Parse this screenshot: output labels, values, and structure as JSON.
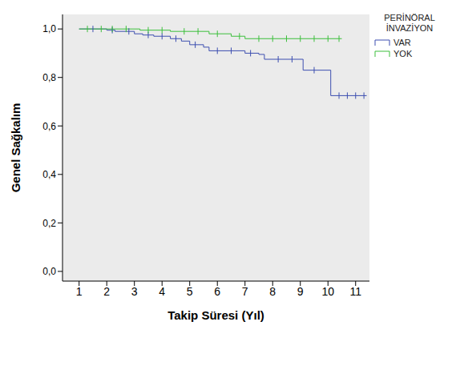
{
  "chart_data": {
    "type": "line",
    "x_label": "Takip Süresi (Yıl)",
    "y_label": "Genel Sağkalım",
    "legend_title": "PERİNÖRAL İNVAZİYON",
    "xlim": [
      0.4,
      11.5
    ],
    "xticks": [
      1,
      2,
      3,
      4,
      5,
      6,
      7,
      8,
      9,
      10,
      11
    ],
    "ylim": [
      -0.04,
      1.06
    ],
    "yticks": [
      {
        "value": 0,
        "label": "0,0"
      },
      {
        "value": 0.2,
        "label": "0,2"
      },
      {
        "value": 0.4,
        "label": "0,4"
      },
      {
        "value": 0.6,
        "label": "0,6"
      },
      {
        "value": 0.8,
        "label": "0,8"
      },
      {
        "value": 1,
        "label": "1,0"
      }
    ],
    "grid": false,
    "legend": "upper right",
    "series": [
      {
        "name": "VAR",
        "color": "#3d4fb0",
        "line_style": "step",
        "x": [
          1,
          2.0,
          2.3,
          3.0,
          3.3,
          3.7,
          4.3,
          4.7,
          5.0,
          5.5,
          5.7,
          7.0,
          7.5,
          7.7,
          9.1,
          10.1,
          11.4
        ],
        "values": [
          1,
          0.995,
          0.99,
          0.98,
          0.975,
          0.97,
          0.96,
          0.95,
          0.935,
          0.925,
          0.91,
          0.9,
          0.895,
          0.875,
          0.83,
          0.725,
          0.725
        ],
        "censored": {
          "x": [
            1.5,
            2.2,
            2.8,
            3.5,
            4.0,
            4.5,
            5.2,
            6.0,
            6.5,
            7.2,
            8.2,
            8.7,
            9.5,
            10.4,
            10.7,
            11.0,
            11.3
          ],
          "values": [
            1,
            0.995,
            0.99,
            0.975,
            0.97,
            0.96,
            0.935,
            0.91,
            0.91,
            0.9,
            0.875,
            0.875,
            0.83,
            0.725,
            0.725,
            0.725,
            0.725
          ]
        }
      },
      {
        "name": "YOK",
        "color": "#3cbf3c",
        "line_style": "step",
        "x": [
          1,
          3.2,
          4.3,
          5.7,
          6.5,
          7.0,
          10.5
        ],
        "values": [
          1,
          0.995,
          0.99,
          0.98,
          0.97,
          0.96,
          0.96
        ],
        "censored": {
          "x": [
            1.3,
            1.8,
            2.2,
            2.7,
            3.5,
            4.0,
            4.8,
            5.3,
            6.0,
            6.8,
            7.5,
            8.0,
            8.5,
            9.0,
            9.5,
            10.0,
            10.4
          ],
          "values": [
            1,
            1,
            1,
            1,
            0.995,
            0.995,
            0.99,
            0.99,
            0.98,
            0.97,
            0.96,
            0.96,
            0.96,
            0.96,
            0.96,
            0.96,
            0.96
          ]
        }
      }
    ]
  }
}
